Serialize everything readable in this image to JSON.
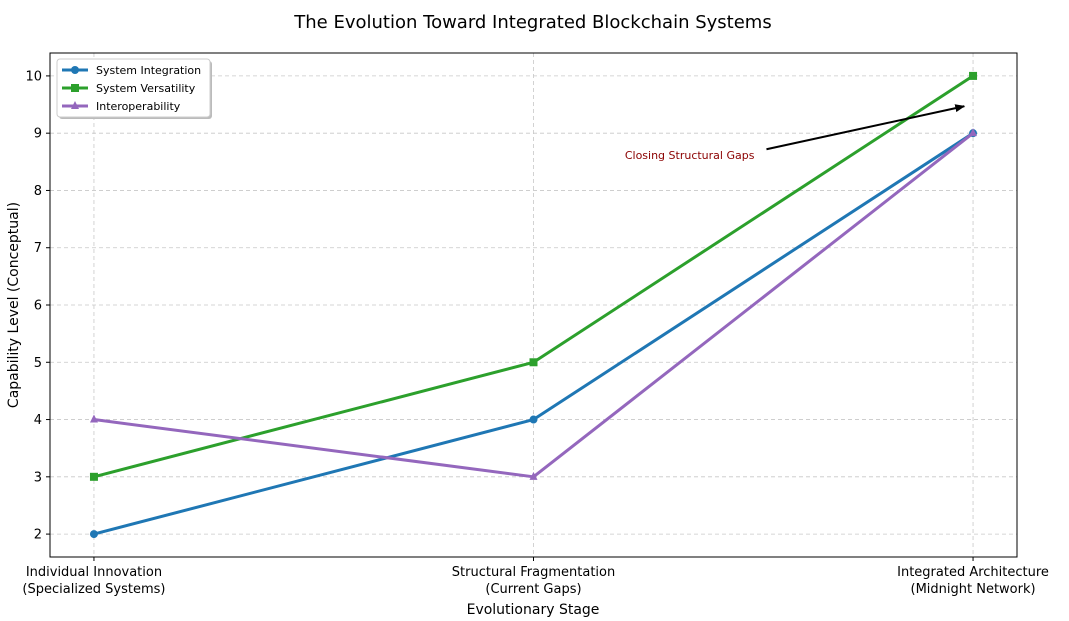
{
  "chart_data": {
    "type": "line",
    "title": "The Evolution Toward Integrated Blockchain Systems",
    "xlabel": "Evolutionary Stage",
    "ylabel": "Capability Level (Conceptual)",
    "categories": [
      [
        "Individual Innovation",
        "(Specialized Systems)"
      ],
      [
        "Structural Fragmentation",
        "(Current Gaps)"
      ],
      [
        "Integrated Architecture",
        "(Midnight Network)"
      ]
    ],
    "ylim": [
      1.6,
      10.4
    ],
    "yticks": [
      "2",
      "3",
      "4",
      "5",
      "6",
      "7",
      "8",
      "9",
      "10"
    ],
    "grid": true,
    "legend_position": "upper-left",
    "series": [
      {
        "name": "System Integration",
        "values": [
          2,
          4,
          9
        ],
        "color": "#1f77b4",
        "marker": "circle"
      },
      {
        "name": "System Versatility",
        "values": [
          3,
          5,
          10
        ],
        "color": "#2ca02c",
        "marker": "square"
      },
      {
        "name": "Interoperability",
        "values": [
          4,
          3,
          9
        ],
        "color": "#9467bd",
        "marker": "triangle"
      }
    ],
    "annotation": {
      "text": "Closing Structural Gaps",
      "color": "#8b0000",
      "arrow_from": [
        1.53,
        8.72
      ],
      "arrow_to": [
        1.98,
        9.47
      ]
    }
  }
}
